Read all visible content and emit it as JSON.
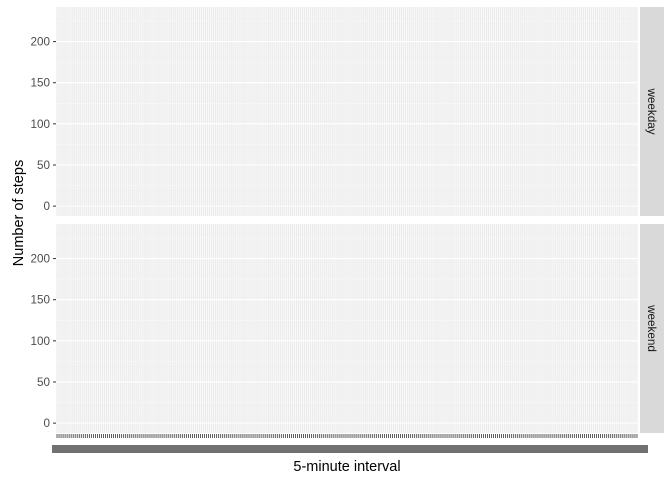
{
  "chart_data": {
    "type": "line",
    "facet_by": "day type",
    "panels": [
      {
        "strip_label": "weekday"
      },
      {
        "strip_label": "weekend"
      }
    ],
    "xlabel": "5-minute interval",
    "ylabel": "Number of steps",
    "ylim": [
      -12,
      242
    ],
    "y_ticks": [
      0,
      50,
      100,
      150,
      200
    ],
    "y_tick_labels": [
      "0",
      "50",
      "100",
      "150",
      "200"
    ],
    "x_axis": "discrete",
    "x_category_count": 288,
    "x_tick_labels_legible": false,
    "grid": true,
    "panel_background": "#EBEBEB",
    "strip_background": "#D9D9D9",
    "series": []
  },
  "colors": {
    "panel_bg": "#EBEBEB",
    "grid_major": "#FFFFFF",
    "strip_bg": "#D9D9D9",
    "axis_text": "#4D4D4D",
    "title_text": "#000000",
    "strip_text": "#1A1A1A"
  }
}
